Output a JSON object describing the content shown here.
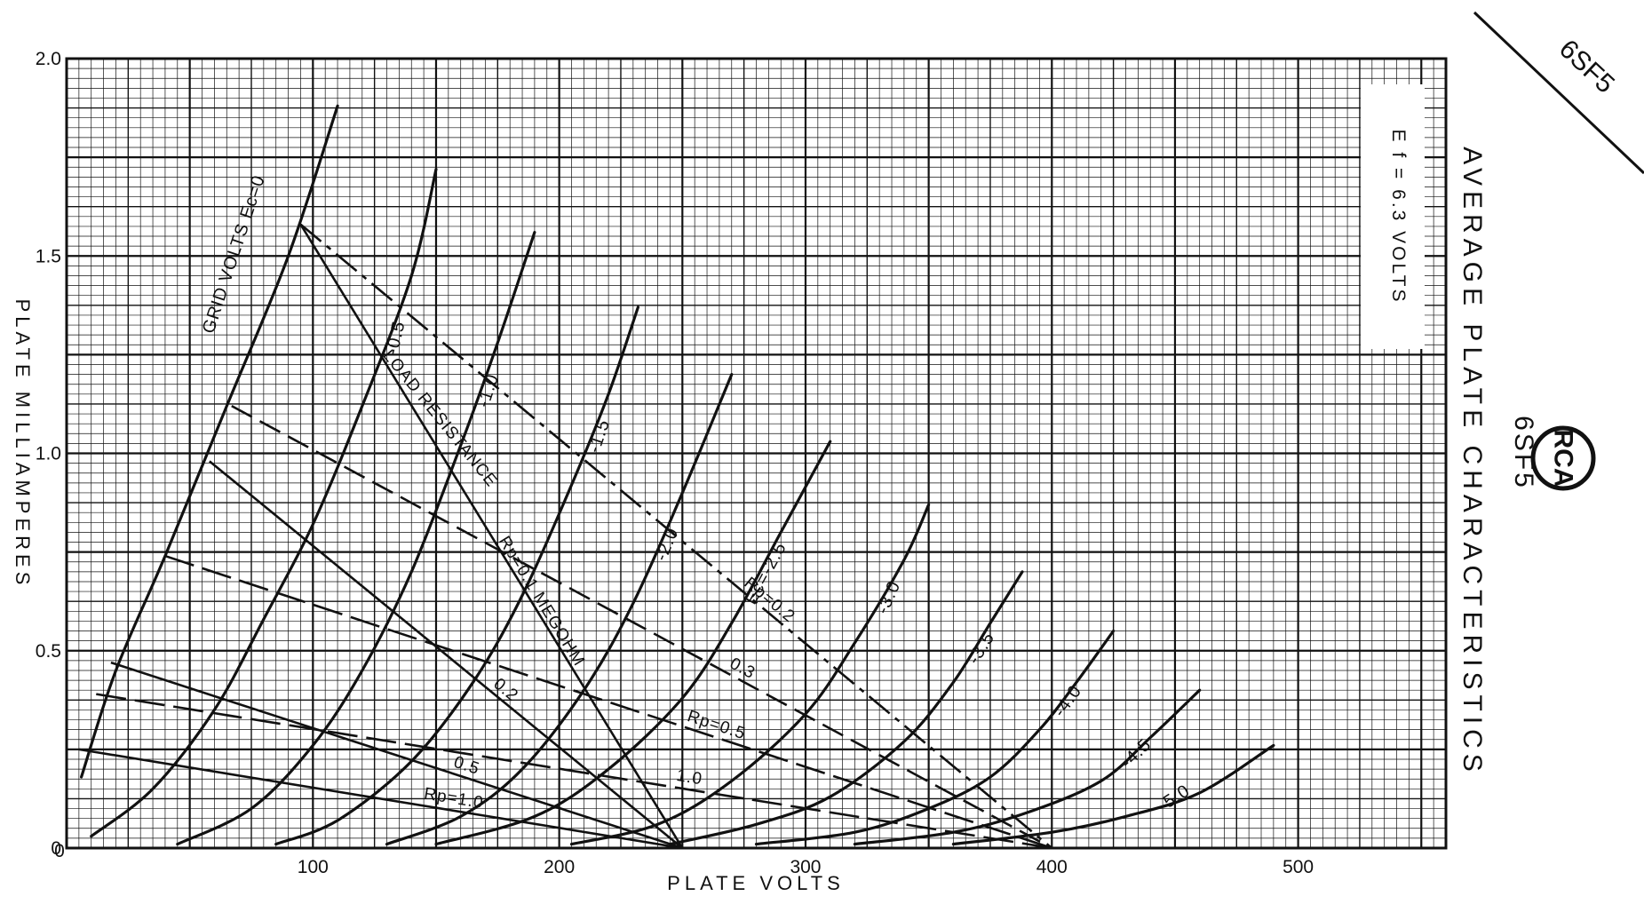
{
  "page": {
    "tube_type_corner": "6SF5",
    "title": "AVERAGE PLATE CHARACTERISTICS",
    "tube_type": "6SF5",
    "logo": "RCA",
    "heater_note": "E f = 6.3 VOLTS"
  },
  "chart_data": {
    "type": "line",
    "title": "AVERAGE PLATE CHARACTERISTICS",
    "xlabel": "PLATE VOLTS",
    "ylabel": "PLATE MILLIAMPERES",
    "xlim": [
      0,
      560
    ],
    "ylim": [
      0,
      2.0
    ],
    "x_ticks": [
      "0",
      "100",
      "200",
      "300",
      "400",
      "500"
    ],
    "y_ticks": [
      "0",
      "0.5",
      "1.0",
      "1.5",
      "2.0"
    ],
    "grid": true,
    "annotations": [
      "GRID VOLTS Ec=0",
      "LOAD RESISTANCE",
      "Rp=0.1 MEGOHM",
      "Ec=-2.5",
      "Rp=0.2",
      "Rp=0.5",
      "Rp=1.0",
      "E f = 6.3 VOLTS"
    ],
    "series": [
      {
        "label": "GRID VOLTS Ec=0",
        "points": [
          [
            6,
            0.18
          ],
          [
            20,
            0.45
          ],
          [
            40,
            0.74
          ],
          [
            65,
            1.12
          ],
          [
            90,
            1.5
          ],
          [
            110,
            1.88
          ]
        ]
      },
      {
        "label": "-0.5",
        "points": [
          [
            10,
            0.03
          ],
          [
            35,
            0.15
          ],
          [
            60,
            0.35
          ],
          [
            80,
            0.58
          ],
          [
            100,
            0.82
          ],
          [
            120,
            1.12
          ],
          [
            140,
            1.45
          ],
          [
            150,
            1.72
          ]
        ]
      },
      {
        "label": "-1.0",
        "points": [
          [
            45,
            0.01
          ],
          [
            75,
            0.1
          ],
          [
            100,
            0.26
          ],
          [
            120,
            0.45
          ],
          [
            140,
            0.7
          ],
          [
            160,
            1.02
          ],
          [
            175,
            1.28
          ],
          [
            190,
            1.56
          ]
        ]
      },
      {
        "label": "-1.5",
        "points": [
          [
            85,
            0.01
          ],
          [
            110,
            0.07
          ],
          [
            140,
            0.22
          ],
          [
            165,
            0.42
          ],
          [
            185,
            0.64
          ],
          [
            205,
            0.92
          ],
          [
            220,
            1.15
          ],
          [
            232,
            1.37
          ]
        ]
      },
      {
        "label": "-2.0",
        "points": [
          [
            130,
            0.01
          ],
          [
            160,
            0.08
          ],
          [
            185,
            0.2
          ],
          [
            210,
            0.4
          ],
          [
            230,
            0.62
          ],
          [
            250,
            0.9
          ],
          [
            270,
            1.2
          ]
        ]
      },
      {
        "label": "Ec=-2.5",
        "points": [
          [
            150,
            0.01
          ],
          [
            190,
            0.08
          ],
          [
            220,
            0.2
          ],
          [
            250,
            0.38
          ],
          [
            270,
            0.57
          ],
          [
            290,
            0.8
          ],
          [
            310,
            1.03
          ]
        ]
      },
      {
        "label": "-3.0",
        "points": [
          [
            205,
            0.01
          ],
          [
            240,
            0.06
          ],
          [
            270,
            0.17
          ],
          [
            300,
            0.34
          ],
          [
            320,
            0.52
          ],
          [
            340,
            0.73
          ],
          [
            350,
            0.87
          ]
        ]
      },
      {
        "label": "-3.5",
        "points": [
          [
            245,
            0.01
          ],
          [
            280,
            0.06
          ],
          [
            310,
            0.13
          ],
          [
            340,
            0.27
          ],
          [
            360,
            0.42
          ],
          [
            375,
            0.57
          ],
          [
            388,
            0.7
          ]
        ]
      },
      {
        "label": "-4.0",
        "points": [
          [
            280,
            0.01
          ],
          [
            320,
            0.04
          ],
          [
            350,
            0.1
          ],
          [
            375,
            0.18
          ],
          [
            395,
            0.3
          ],
          [
            410,
            0.42
          ],
          [
            425,
            0.55
          ]
        ]
      },
      {
        "label": "-4.5",
        "points": [
          [
            320,
            0.01
          ],
          [
            360,
            0.04
          ],
          [
            390,
            0.09
          ],
          [
            420,
            0.17
          ],
          [
            440,
            0.28
          ],
          [
            460,
            0.4
          ]
        ]
      },
      {
        "label": "-5.0",
        "points": [
          [
            360,
            0.01
          ],
          [
            400,
            0.04
          ],
          [
            430,
            0.08
          ],
          [
            460,
            0.14
          ],
          [
            490,
            0.26
          ]
        ]
      }
    ],
    "load_lines": [
      {
        "label": "Rp=0.1 MEGOHM",
        "from": [
          95,
          1.58
        ],
        "to": [
          250,
          0.0
        ]
      },
      {
        "label": "Rp=0.2",
        "from": [
          95,
          1.58
        ],
        "to": [
          400,
          0.0
        ]
      },
      {
        "label": "0.2",
        "from": [
          58,
          0.98
        ],
        "to": [
          250,
          0.0
        ]
      },
      {
        "label": "0.3",
        "from": [
          67,
          1.12
        ],
        "to": [
          400,
          0.0
        ]
      },
      {
        "label": "Rp=0.5",
        "from": [
          40,
          0.74
        ],
        "to": [
          400,
          0.0
        ]
      },
      {
        "label": "0.5",
        "from": [
          18,
          0.47
        ],
        "to": [
          250,
          0.0
        ]
      },
      {
        "label": "Rp=1.0",
        "from": [
          5,
          0.25
        ],
        "to": [
          250,
          0.0
        ]
      },
      {
        "label": "1.0",
        "from": [
          12,
          0.39
        ],
        "to": [
          400,
          0.0
        ]
      }
    ]
  }
}
